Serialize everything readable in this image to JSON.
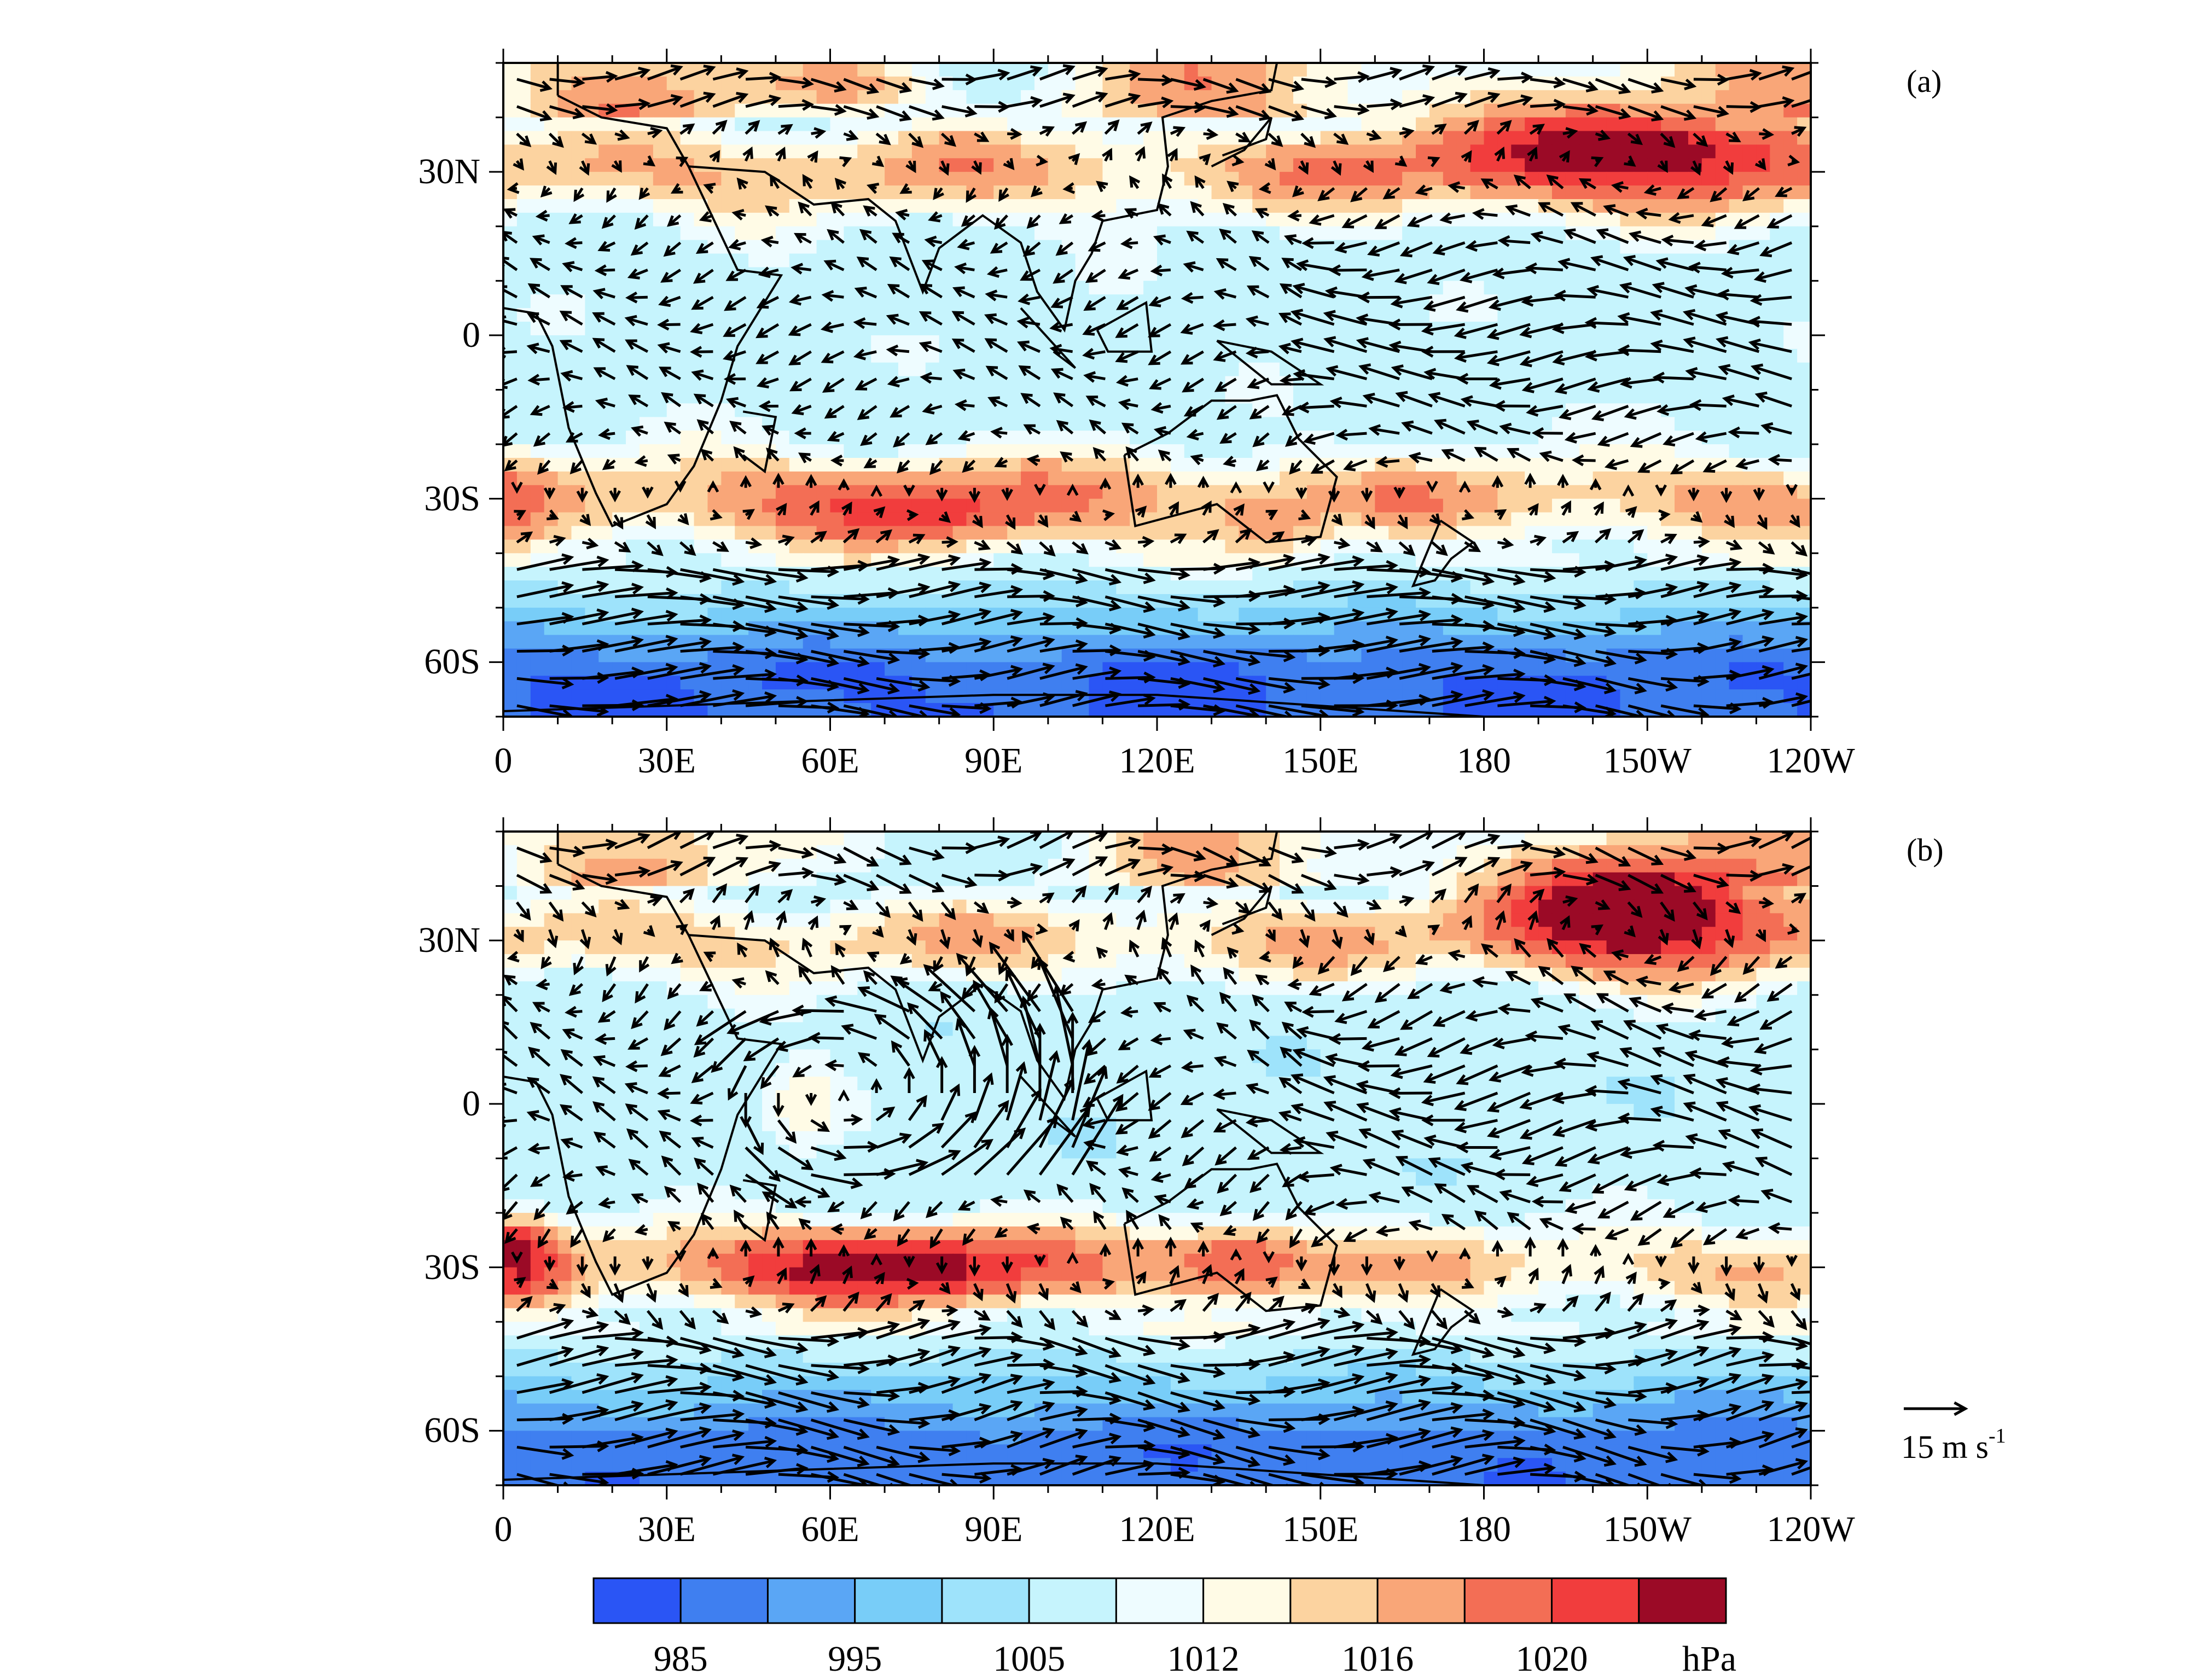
{
  "panels": [
    {
      "tag": "(a)",
      "centers": [
        {
          "lon": 205,
          "lat": 34,
          "value": 1024,
          "rx": 38,
          "ry": 9
        },
        {
          "lon": 75,
          "lat": -32,
          "value": 1021,
          "rx": 30,
          "ry": 7
        },
        {
          "lon": 2,
          "lat": -31,
          "value": 1019,
          "rx": 6,
          "ry": 8
        },
        {
          "lon": 140,
          "lat": -34,
          "value": 1018,
          "rx": 10,
          "ry": 6
        },
        {
          "lon": 62,
          "lat": 46,
          "value": 1018,
          "rx": 14,
          "ry": 4
        },
        {
          "lon": 85,
          "lat": 33,
          "value": 1018,
          "rx": 6,
          "ry": 4
        }
      ],
      "pattern": {
        "eq_trough": 1008,
        "ns_high_base": 1016,
        "polar_low": 985
      }
    },
    {
      "tag": "(b)",
      "centers": [
        {
          "lon": 208,
          "lat": 36,
          "value": 1026,
          "rx": 28,
          "ry": 11
        },
        {
          "lon": 70,
          "lat": -30,
          "value": 1024,
          "rx": 34,
          "ry": 7
        },
        {
          "lon": 3,
          "lat": -28,
          "value": 1023,
          "rx": 8,
          "ry": 8
        },
        {
          "lon": 135,
          "lat": -29,
          "value": 1020,
          "rx": 16,
          "ry": 6
        },
        {
          "lon": 55,
          "lat": 0,
          "value": 1014,
          "rx": 10,
          "ry": 10
        }
      ],
      "pattern": {
        "eq_trough": 1007,
        "ns_high_base": 1015,
        "polar_low": 987
      }
    }
  ],
  "x_ticks": [
    {
      "lon": 0,
      "label": "0"
    },
    {
      "lon": 30,
      "label": "30E"
    },
    {
      "lon": 60,
      "label": "60E"
    },
    {
      "lon": 90,
      "label": "90E"
    },
    {
      "lon": 120,
      "label": "120E"
    },
    {
      "lon": 150,
      "label": "150E"
    },
    {
      "lon": 180,
      "label": "180"
    },
    {
      "lon": 210,
      "label": "150W"
    },
    {
      "lon": 240,
      "label": "120W"
    }
  ],
  "y_ticks": [
    {
      "lat": 30,
      "label": "30N"
    },
    {
      "lat": 0,
      "label": "0"
    },
    {
      "lat": -30,
      "label": "30S"
    },
    {
      "lat": -60,
      "label": "60S"
    }
  ],
  "extent": {
    "lon": [
      0,
      240
    ],
    "lat": [
      -70,
      50
    ]
  },
  "colorbar": {
    "levels": [
      985,
      990,
      995,
      1000,
      1005,
      1010,
      1012,
      1014,
      1016,
      1018,
      1020,
      1022
    ],
    "colors": [
      "#2a55f5",
      "#3f7ff0",
      "#5aa6f5",
      "#78cdf8",
      "#9ee3fb",
      "#c6f4fd",
      "#eefcff",
      "#fffbe6",
      "#fcd3a0",
      "#f9a678",
      "#f36e55",
      "#f13d3d",
      "#9b0a26"
    ],
    "labels": [
      {
        "after_index": 0,
        "text": "985"
      },
      {
        "after_index": 2,
        "text": "995"
      },
      {
        "after_index": 4,
        "text": "1005"
      },
      {
        "after_index": 6,
        "text": "1012"
      },
      {
        "after_index": 8,
        "text": "1016"
      },
      {
        "after_index": 10,
        "text": "1020"
      }
    ],
    "unit": "hPa"
  },
  "reference_vector": {
    "magnitude": 15,
    "label_main": "15 m s",
    "label_sup": "-1"
  }
}
